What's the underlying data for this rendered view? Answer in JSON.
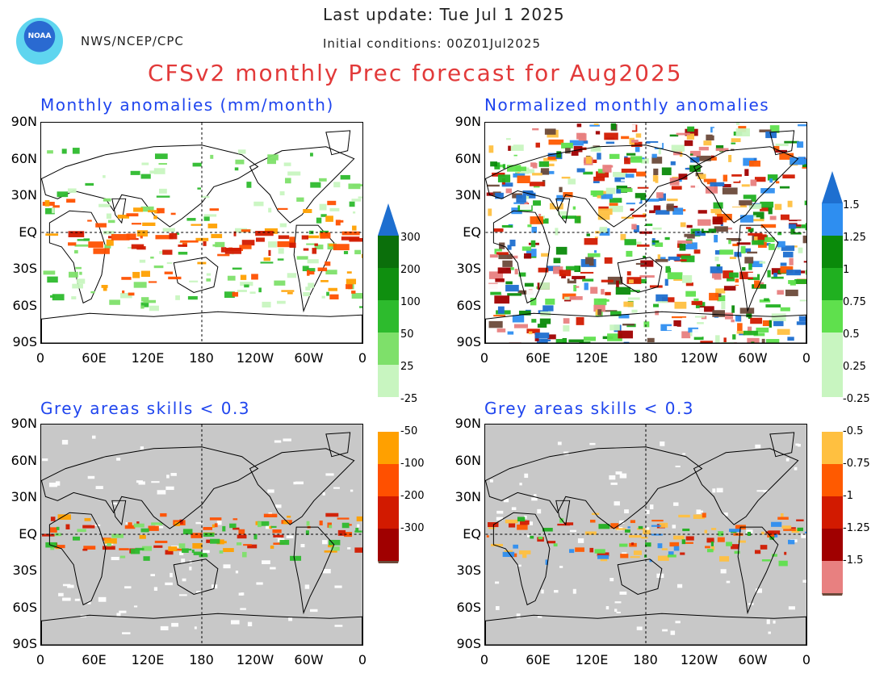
{
  "header": {
    "last_update": "Last update: Tue Jul 1 2025",
    "initial_conditions": "Initial conditions: 00Z01Jul2025",
    "org": "NWS/NCEP/CPC",
    "logo_text": "NOAA",
    "title": "CFSv2 monthly Prec forecast for Aug2025"
  },
  "panels": {
    "tl": {
      "title": "Monthly anomalies (mm/month)"
    },
    "tr": {
      "title": "Normalized monthly anomalies"
    },
    "bl": {
      "title": "Grey areas skills < 0.3"
    },
    "br": {
      "title": "Grey areas skills < 0.3"
    }
  },
  "axes": {
    "lat_ticks": [
      "90N",
      "60N",
      "30N",
      "EQ",
      "30S",
      "60S",
      "90S"
    ],
    "lon_ticks": [
      "0",
      "60E",
      "120E",
      "180",
      "120W",
      "60W",
      "0"
    ]
  },
  "colorbars": {
    "left": {
      "top_labels": [
        "300",
        "200",
        "100",
        "50",
        "25"
      ],
      "bottom_labels": [
        "-25",
        "-50",
        "-100",
        "-200",
        "-300"
      ]
    },
    "right": {
      "top_labels": [
        "1.5",
        "1.25",
        "1",
        "0.75",
        "0.5",
        "0.25"
      ],
      "bottom_labels": [
        "-0.25",
        "-0.5",
        "-0.75",
        "-1",
        "-1.25",
        "-1.5"
      ]
    }
  },
  "colors": {
    "wet": [
      "#c8f5c0",
      "#7ee06a",
      "#2dbb2d",
      "#0f8f0f",
      "#0b6f0b",
      "#1e6fd0"
    ],
    "dry": [
      "#ffa000",
      "#ff5000",
      "#d21a00",
      "#a00000",
      "#7a0000",
      "#6b4a3a"
    ],
    "norm_wet": [
      "#c8f5c0",
      "#5fe04d",
      "#20b020",
      "#0a8a0a",
      "#2e8ef0",
      "#1e6fd0"
    ],
    "norm_dry": [
      "#ffc040",
      "#ff5a00",
      "#d21a00",
      "#a00000",
      "#e88080",
      "#6b4a3a"
    ],
    "grey_mask": "#c8c8c8"
  }
}
